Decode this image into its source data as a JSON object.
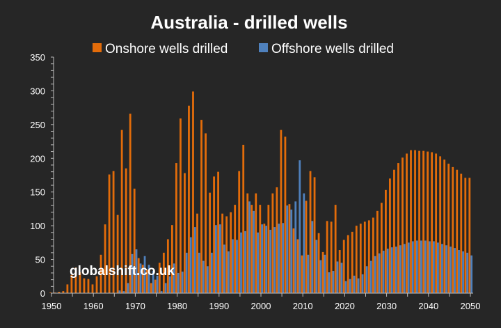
{
  "chart_data": {
    "type": "bar",
    "title": "Australia - drilled wells",
    "xlabel": "",
    "ylabel": "",
    "ylim": [
      0,
      350
    ],
    "xlim": [
      1950,
      2050
    ],
    "y_ticks": [
      "0",
      "50",
      "100",
      "150",
      "200",
      "250",
      "300",
      "350"
    ],
    "x_ticks": [
      "1950",
      "1960",
      "1970",
      "1980",
      "1990",
      "2000",
      "2010",
      "2020",
      "2030",
      "2040",
      "2050"
    ],
    "legend_position": "top-center",
    "grid": false,
    "watermark": "globalshift.co.uk",
    "colors": {
      "background": "#262626",
      "onshore": "#e36c0a",
      "offshore": "#4f81bd",
      "axis": "#bfbfbf",
      "text": "#ffffff"
    },
    "categories": [
      1950,
      1951,
      1952,
      1953,
      1954,
      1955,
      1956,
      1957,
      1958,
      1959,
      1960,
      1961,
      1962,
      1963,
      1964,
      1965,
      1966,
      1967,
      1968,
      1969,
      1970,
      1971,
      1972,
      1973,
      1974,
      1975,
      1976,
      1977,
      1978,
      1979,
      1980,
      1981,
      1982,
      1983,
      1984,
      1985,
      1986,
      1987,
      1988,
      1989,
      1990,
      1991,
      1992,
      1993,
      1994,
      1995,
      1996,
      1997,
      1998,
      1999,
      2000,
      2001,
      2002,
      2003,
      2004,
      2005,
      2006,
      2007,
      2008,
      2009,
      2010,
      2011,
      2012,
      2013,
      2014,
      2015,
      2016,
      2017,
      2018,
      2019,
      2020,
      2021,
      2022,
      2023,
      2024,
      2025,
      2026,
      2027,
      2028,
      2029,
      2030,
      2031,
      2032,
      2033,
      2034,
      2035,
      2036,
      2037,
      2038,
      2039,
      2040,
      2041,
      2042,
      2043,
      2044,
      2045,
      2046,
      2047,
      2048,
      2049,
      2050
    ],
    "series": [
      {
        "name": "Onshore wells drilled",
        "values": [
          1,
          1,
          2,
          3,
          13,
          27,
          38,
          31,
          22,
          21,
          13,
          25,
          57,
          102,
          176,
          181,
          116,
          242,
          185,
          266,
          155,
          52,
          42,
          35,
          15,
          20,
          45,
          60,
          80,
          101,
          193,
          259,
          178,
          278,
          299,
          118,
          257,
          237,
          149,
          173,
          180,
          118,
          114,
          120,
          131,
          181,
          220,
          148,
          131,
          148,
          131,
          103,
          131,
          148,
          157,
          242,
          232,
          132,
          96,
          80,
          56,
          137,
          181,
          172,
          89,
          61,
          107,
          106,
          131,
          64,
          79,
          86,
          91,
          100,
          103,
          106,
          108,
          112,
          122,
          134,
          153,
          170,
          183,
          193,
          201,
          207,
          212,
          212,
          211,
          211,
          210,
          209,
          207,
          203,
          198,
          192,
          187,
          183,
          177,
          171,
          171
        ]
      },
      {
        "name": "Offshore wells drilled",
        "values": [
          0,
          0,
          0,
          0,
          0,
          0,
          0,
          0,
          0,
          0,
          0,
          0,
          0,
          0,
          0,
          0,
          4,
          3,
          15,
          58,
          65,
          44,
          55,
          42,
          33,
          26,
          3,
          15,
          25,
          44,
          30,
          32,
          60,
          83,
          98,
          60,
          48,
          40,
          60,
          101,
          102,
          72,
          62,
          80,
          79,
          90,
          92,
          136,
          122,
          90,
          102,
          100,
          94,
          98,
          103,
          104,
          130,
          124,
          136,
          197,
          148,
          57,
          107,
          79,
          49,
          57,
          31,
          33,
          47,
          45,
          18,
          21,
          26,
          22,
          28,
          40,
          48,
          55,
          59,
          63,
          66,
          68,
          69,
          71,
          73,
          75,
          77,
          78,
          78,
          78,
          77,
          77,
          75,
          73,
          71,
          69,
          67,
          64,
          62,
          60,
          56
        ]
      }
    ]
  }
}
